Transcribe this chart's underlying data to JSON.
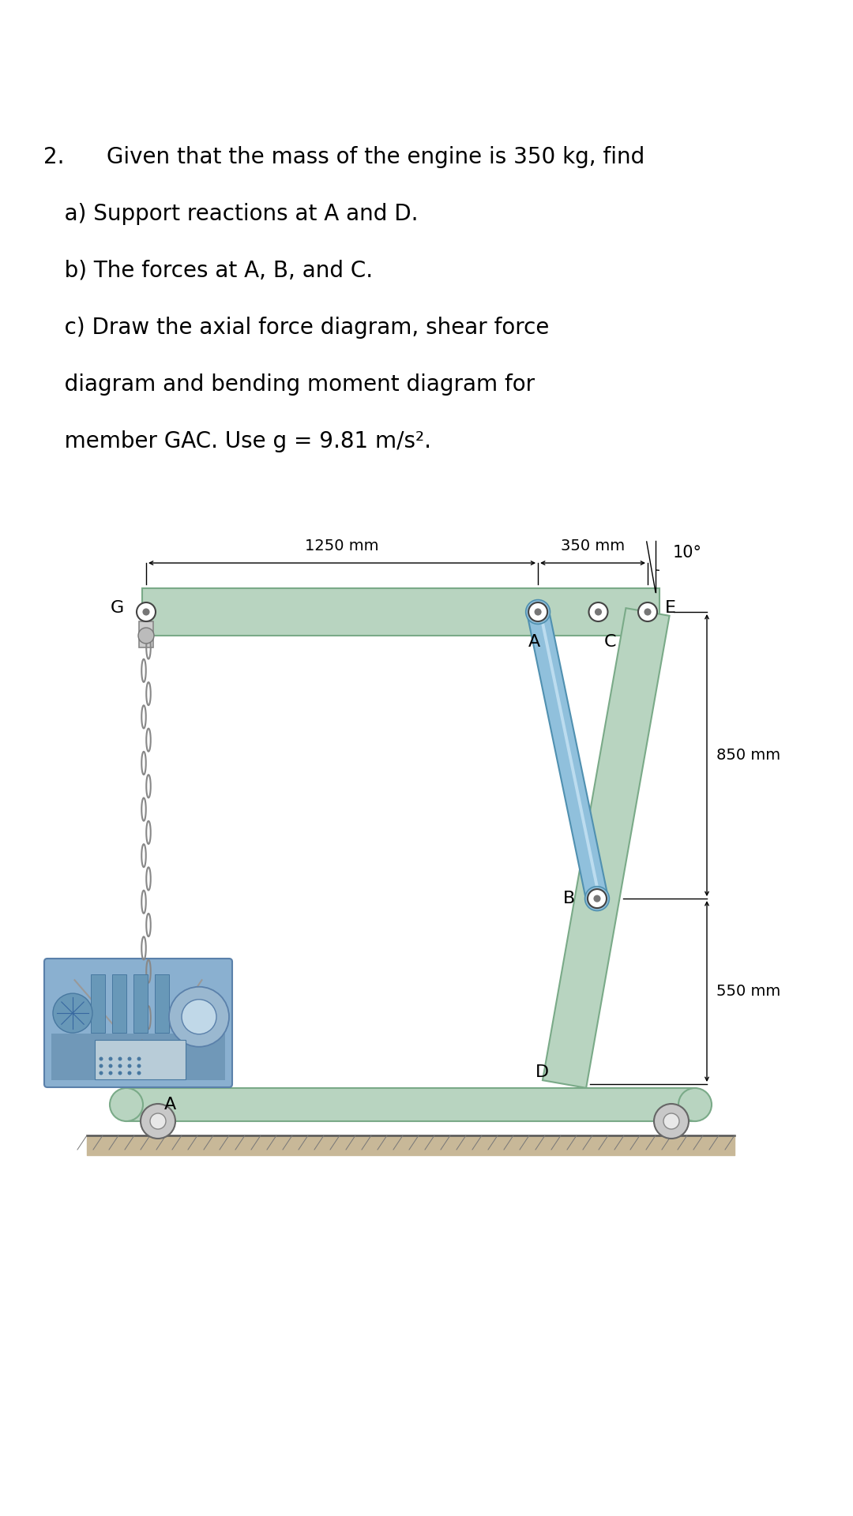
{
  "title_number": "2.",
  "title_text": "Given that the mass of the engine is 350 kg, find",
  "line_a": "   a) Support reactions at A and D.",
  "line_b": "   b) The forces at A, B, and C.",
  "line_c": "   c) Draw the axial force diagram, shear force",
  "line_d": "   diagram and bending moment diagram for",
  "line_e": "   member GAC. Use g = 9.81 m/s².",
  "dim_1250": "1250 mm",
  "dim_350": "350 mm",
  "dim_850": "850 mm",
  "dim_550": "550 mm",
  "angle_label": "10°",
  "label_G": "G",
  "label_A_top": "A",
  "label_C": "C",
  "label_E": "E",
  "label_B": "B",
  "label_D": "D",
  "label_A_bottom": "A",
  "bg_color": "#ffffff",
  "beam_color_face": "#b8d4c0",
  "beam_color_edge": "#7aaa88",
  "strut_color_face": "#90c0dc",
  "strut_color_edge": "#5090b0",
  "strut_highlight": "#c8e4f4",
  "text_color": "#000000",
  "font_size_title": 20,
  "font_size_label": 16,
  "font_size_dim": 14,
  "font_size_angle": 15
}
